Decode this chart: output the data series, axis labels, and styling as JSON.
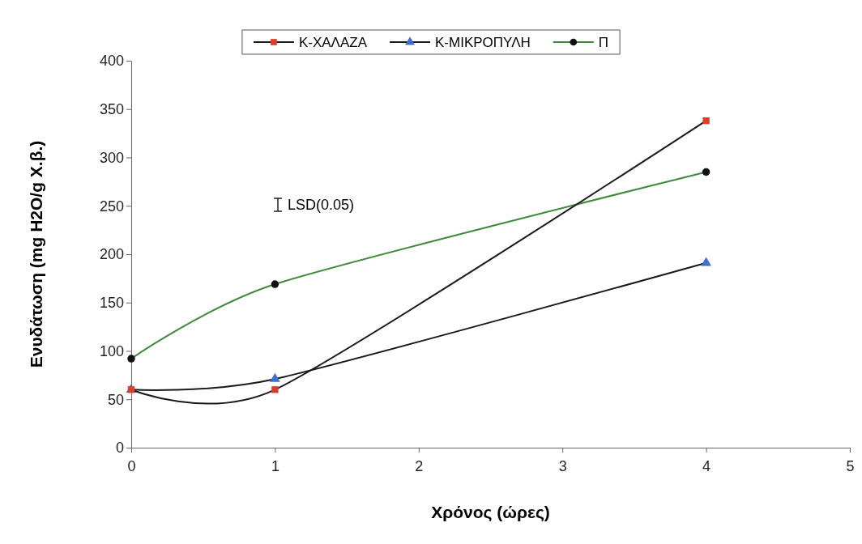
{
  "chart_data": {
    "type": "line",
    "xlabel": "Χρόνος (ώρες)",
    "ylabel": "Ενυδάτωση (mg H2O/g Χ.β.)",
    "x": [
      0,
      1,
      4
    ],
    "series": [
      {
        "name": "Κ-ΧΑΛΑΖΑ",
        "color": "#1a1a1a",
        "colors": [
          "#d9402a",
          "#d9402a",
          "#d9402a"
        ],
        "marker": "square",
        "values": [
          60,
          60,
          338
        ]
      },
      {
        "name": "Κ-ΜΙΚΡΟΠΥΛΗ",
        "color": "#1a1a1a",
        "colors": [
          "#3d6fd0",
          "#3d6fd0",
          "#3d6fd0"
        ],
        "marker": "triangle",
        "values": [
          60,
          71,
          191
        ]
      },
      {
        "name": "Π",
        "color": "#3f8a3a",
        "colors": [
          "#111111",
          "#111111",
          "#111111"
        ],
        "marker": "circle",
        "values": [
          92,
          169,
          285
        ]
      }
    ],
    "xlim": [
      0,
      5
    ],
    "xticks": [
      0,
      1,
      2,
      3,
      4,
      5
    ],
    "ylim": [
      0,
      400
    ],
    "yticks": [
      0,
      50,
      100,
      150,
      200,
      250,
      300,
      350,
      400
    ],
    "grid": false,
    "legend": "top",
    "line_style": "solid",
    "annotations": [
      "LSD(0.05)"
    ]
  }
}
